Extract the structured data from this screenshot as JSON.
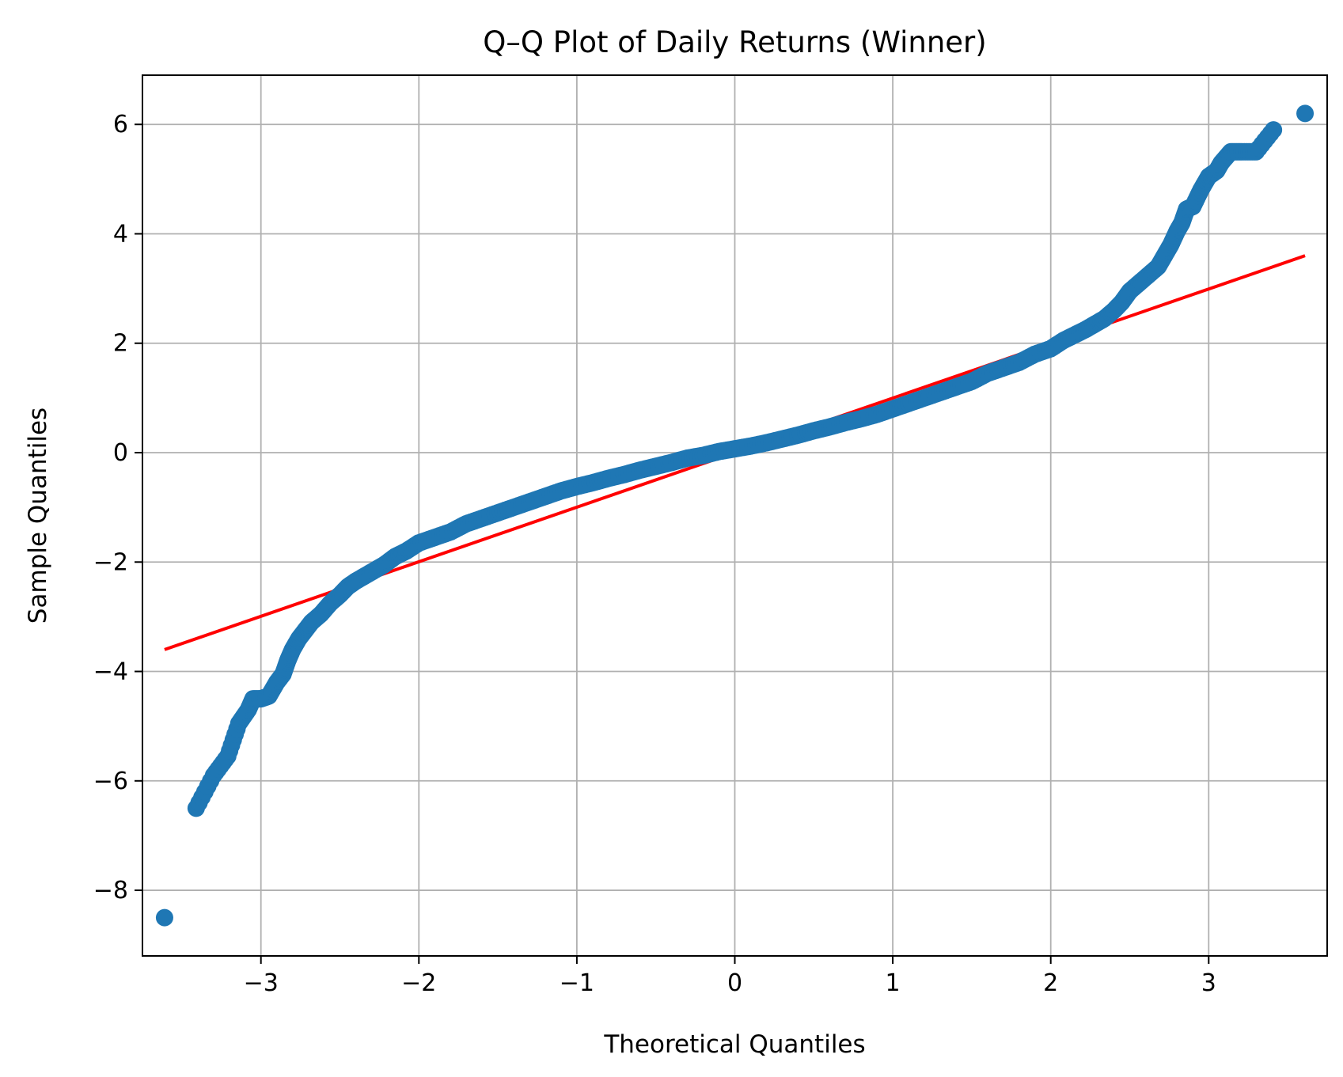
{
  "chart_data": {
    "type": "scatter",
    "title": "Q–Q Plot of Daily Returns (Winner)",
    "xlabel": "Theoretical Quantiles",
    "ylabel": "Sample Quantiles",
    "xlim": [
      -3.75,
      3.75
    ],
    "ylim": [
      -9.2,
      6.9
    ],
    "xticks": [
      -3,
      -2,
      -1,
      0,
      1,
      2,
      3
    ],
    "xtick_labels": [
      "−3",
      "−2",
      "−1",
      "0",
      "1",
      "2",
      "3"
    ],
    "yticks": [
      -8,
      -6,
      -4,
      -2,
      0,
      2,
      4,
      6
    ],
    "ytick_labels": [
      "−8",
      "−6",
      "−4",
      "−2",
      "0",
      "2",
      "4",
      "6"
    ],
    "grid": true,
    "point_color": "#1f77b4",
    "line_color": "#ff0000",
    "reference_line": {
      "x": [
        -3.61,
        3.61
      ],
      "y": [
        -3.6,
        3.6
      ]
    },
    "series": [
      {
        "values_x": [
          -3.61,
          -3.41,
          -3.3,
          -3.21,
          -3.14,
          -3.08,
          -3.05,
          -3.0,
          -2.95,
          -2.9,
          -2.86,
          -2.83,
          -2.8,
          -2.76,
          -2.72,
          -2.68,
          -2.62,
          -2.56,
          -2.5,
          -2.45,
          -2.4,
          -2.34,
          -2.28,
          -2.22,
          -2.15,
          -2.08,
          -2.0,
          -1.9,
          -1.8,
          -1.7,
          -1.6,
          -1.5,
          -1.4,
          -1.3,
          -1.2,
          -1.1,
          -1.0,
          -0.9,
          -0.8,
          -0.7,
          -0.6,
          -0.5,
          -0.4,
          -0.3,
          -0.2,
          -0.1,
          0.0,
          0.1,
          0.2,
          0.3,
          0.4,
          0.5,
          0.6,
          0.7,
          0.8,
          0.9,
          1.0,
          1.1,
          1.2,
          1.3,
          1.4,
          1.5,
          1.6,
          1.7,
          1.8,
          1.9,
          2.0,
          2.08,
          2.15,
          2.22,
          2.28,
          2.34,
          2.4,
          2.45,
          2.5,
          2.56,
          2.62,
          2.68,
          2.72,
          2.76,
          2.8,
          2.83,
          2.86,
          2.9,
          2.95,
          3.0,
          3.05,
          3.08,
          3.14,
          3.21,
          3.3,
          3.41,
          3.61
        ],
        "values_y": [
          -8.5,
          -6.5,
          -5.9,
          -5.55,
          -4.95,
          -4.7,
          -4.5,
          -4.5,
          -4.45,
          -4.2,
          -4.05,
          -3.8,
          -3.6,
          -3.4,
          -3.25,
          -3.1,
          -2.95,
          -2.75,
          -2.6,
          -2.45,
          -2.35,
          -2.25,
          -2.15,
          -2.05,
          -1.9,
          -1.8,
          -1.65,
          -1.55,
          -1.45,
          -1.3,
          -1.2,
          -1.1,
          -1.0,
          -0.9,
          -0.8,
          -0.7,
          -0.62,
          -0.55,
          -0.47,
          -0.4,
          -0.32,
          -0.25,
          -0.18,
          -0.1,
          -0.05,
          0.02,
          0.07,
          0.12,
          0.18,
          0.25,
          0.32,
          0.4,
          0.47,
          0.55,
          0.62,
          0.7,
          0.8,
          0.9,
          1.0,
          1.1,
          1.2,
          1.3,
          1.45,
          1.55,
          1.65,
          1.8,
          1.9,
          2.05,
          2.15,
          2.25,
          2.35,
          2.45,
          2.6,
          2.75,
          2.95,
          3.1,
          3.25,
          3.4,
          3.6,
          3.8,
          4.05,
          4.2,
          4.45,
          4.5,
          4.8,
          5.05,
          5.15,
          5.3,
          5.5,
          5.5,
          5.5,
          5.9,
          6.2
        ]
      }
    ]
  }
}
